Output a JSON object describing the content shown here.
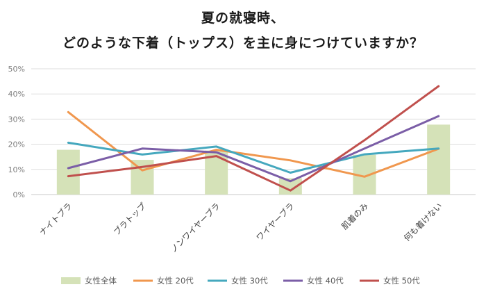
{
  "chart_data": {
    "type": "bar+line",
    "title_lines": [
      "夏の就寝時、",
      "どのような下着（トップス）を主に身につけていますか？"
    ],
    "categories": [
      "ナイトブラ",
      "ブラトップ",
      "ノンワイヤーブラ",
      "ワイヤーブラ",
      "肌着のみ",
      "何も着けない"
    ],
    "ylim": [
      0,
      50
    ],
    "yticks": [
      0,
      10,
      20,
      30,
      40,
      50
    ],
    "ytick_labels": [
      "0%",
      "10%",
      "20%",
      "30%",
      "40%",
      "50%"
    ],
    "grid": true,
    "legend_position": "bottom",
    "bar_series": {
      "name": "女性全体",
      "color": "#d5e2b8",
      "values": [
        17.8,
        13.8,
        17.5,
        6.5,
        15.8,
        27.8
      ]
    },
    "line_series": [
      {
        "name": "女性 20代",
        "color": "#f0974e",
        "values": [
          32.8,
          9.6,
          17.8,
          13.6,
          7.1,
          18.2
        ]
      },
      {
        "name": "女性 30代",
        "color": "#45a8be",
        "values": [
          20.6,
          15.9,
          19.1,
          8.7,
          16.0,
          18.3
        ]
      },
      {
        "name": "女性 40代",
        "color": "#7b5ea7",
        "values": [
          10.5,
          18.3,
          16.8,
          5.3,
          18.3,
          31.2
        ]
      },
      {
        "name": "女性 50代",
        "color": "#c0504d",
        "values": [
          7.3,
          11.0,
          15.3,
          1.6,
          21.6,
          43.1
        ]
      }
    ]
  }
}
